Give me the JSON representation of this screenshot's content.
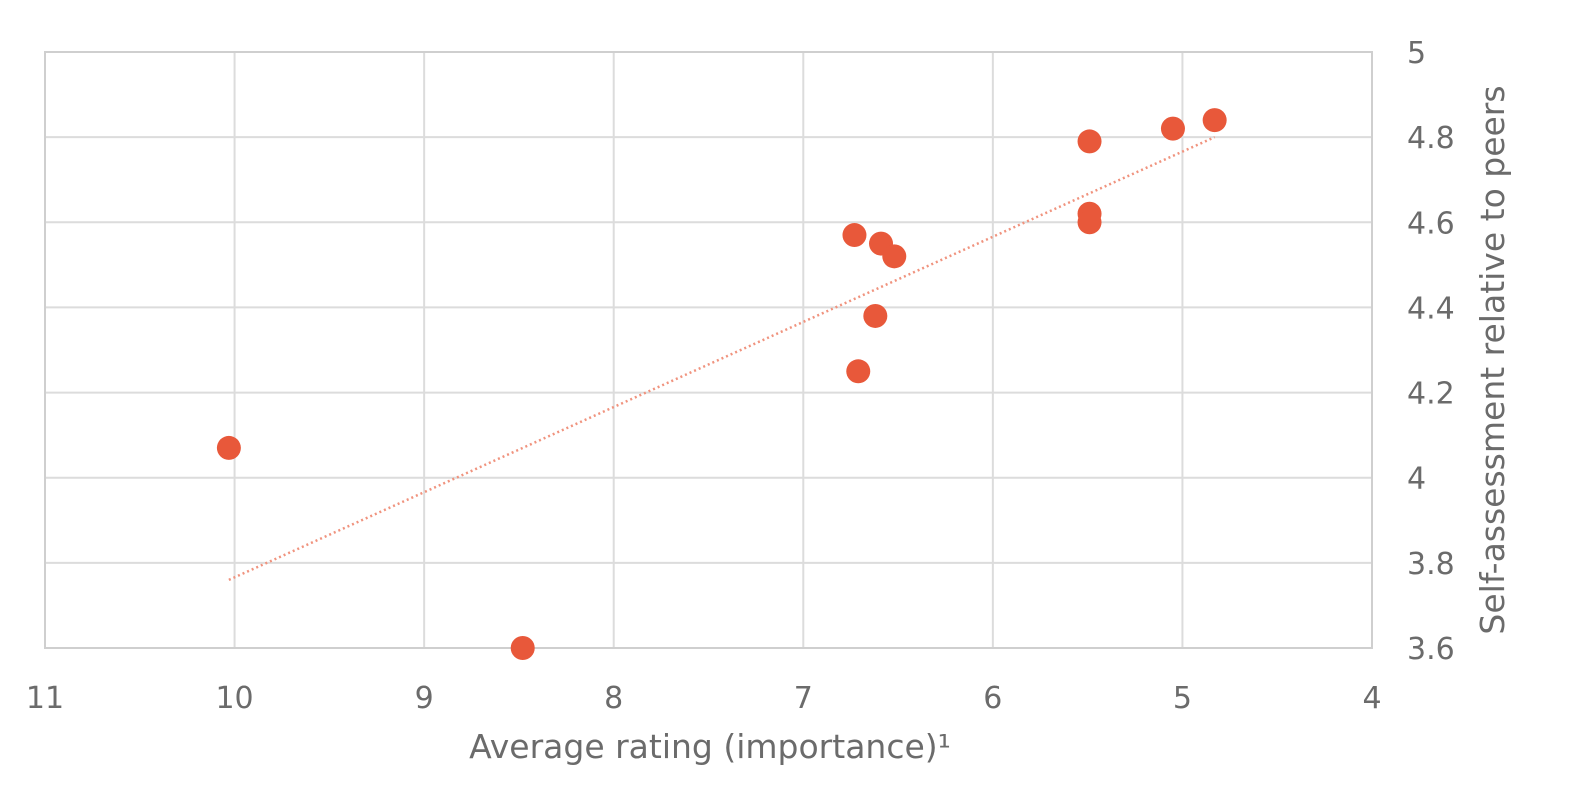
{
  "chart_data": {
    "type": "scatter",
    "title": "",
    "xlabel": "Average rating (importance)¹",
    "ylabel": "Self-assessment relative to peers",
    "xlim": [
      11,
      4
    ],
    "x_reversed": true,
    "ylim": [
      3.6,
      5
    ],
    "x_ticks": [
      11,
      10,
      9,
      8,
      7,
      6,
      5,
      4
    ],
    "x_tick_labels": [
      "11",
      "10",
      "9",
      "8",
      "7",
      "6",
      "5",
      "4"
    ],
    "y_ticks": [
      3.6,
      3.8,
      4,
      4.2,
      4.4,
      4.6,
      4.8,
      5
    ],
    "y_tick_labels": [
      "3.6",
      "3.8",
      "4",
      "4.2",
      "4.4",
      "4.6",
      "4.8",
      "5"
    ],
    "y_axis_side": "right",
    "grid": true,
    "legend": "none",
    "series": [
      {
        "color": "#e8583a",
        "points": [
          {
            "x": 10.03,
            "y": 4.07
          },
          {
            "x": 8.48,
            "y": 3.6
          },
          {
            "x": 6.73,
            "y": 4.57
          },
          {
            "x": 6.59,
            "y": 4.55
          },
          {
            "x": 6.52,
            "y": 4.52
          },
          {
            "x": 6.62,
            "y": 4.38
          },
          {
            "x": 6.71,
            "y": 4.25
          },
          {
            "x": 5.49,
            "y": 4.79
          },
          {
            "x": 5.49,
            "y": 4.62
          },
          {
            "x": 5.49,
            "y": 4.6
          },
          {
            "x": 5.05,
            "y": 4.82
          },
          {
            "x": 4.83,
            "y": 4.84
          }
        ]
      }
    ],
    "trendline": {
      "type": "linear",
      "color": "#f0937e",
      "style": "dotted",
      "start": {
        "x": 10.03,
        "y": 3.76
      },
      "end": {
        "x": 4.83,
        "y": 4.8
      }
    }
  }
}
